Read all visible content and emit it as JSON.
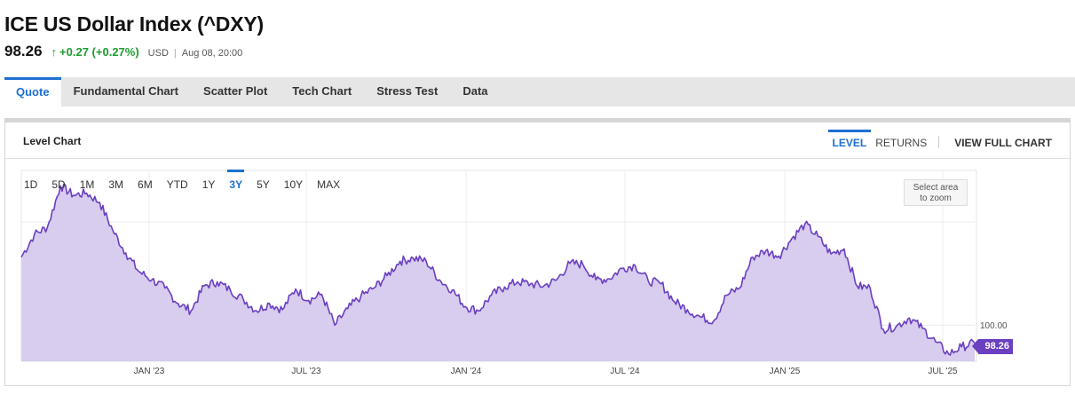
{
  "header": {
    "title": "ICE US Dollar Index (^DXY)",
    "price": "98.26",
    "change": "+0.27 (+0.27%)",
    "currency": "USD",
    "timestamp": "Aug 08, 20:00"
  },
  "tabs": [
    {
      "label": "Quote",
      "active": true
    },
    {
      "label": "Fundamental Chart"
    },
    {
      "label": "Scatter Plot"
    },
    {
      "label": "Tech Chart"
    },
    {
      "label": "Stress Test"
    },
    {
      "label": "Data"
    }
  ],
  "panel": {
    "title": "Level Chart",
    "mode_level": "LEVEL",
    "mode_returns": "RETURNS",
    "view_full": "VIEW FULL CHART"
  },
  "ranges": [
    "1D",
    "5D",
    "1M",
    "3M",
    "6M",
    "YTD",
    "1Y",
    "3Y",
    "5Y",
    "10Y",
    "MAX"
  ],
  "active_range": "3Y",
  "zoom_hint_line1": "Select area",
  "zoom_hint_line2": "to zoom",
  "colors": {
    "accent": "#1d6fd1",
    "positive": "#1e9b2f",
    "series": "#6a3fc0",
    "fill": "#d8ccef"
  },
  "chart_data": {
    "type": "area",
    "series_name": "ICE US Dollar Index",
    "x_tick_labels": [
      "JAN '23",
      "JUL '23",
      "JAN '24",
      "JUL '24",
      "JAN '25",
      "JUL '25"
    ],
    "y_tick_label": "100.00",
    "last_value_label": "98.26",
    "last_value": 98.26,
    "y_min": 96.5,
    "y_max": 115,
    "x": [
      "2022-08",
      "2022-09-01",
      "2022-09-15",
      "2022-09-28",
      "2022-10-10",
      "2022-10-20",
      "2022-11-01",
      "2022-11-10",
      "2022-11-20",
      "2022-12-01",
      "2022-12-15",
      "2023-01-01",
      "2023-01-15",
      "2023-02-01",
      "2023-02-15",
      "2023-03-01",
      "2023-03-15",
      "2023-04-01",
      "2023-04-15",
      "2023-05-01",
      "2023-05-15",
      "2023-06-01",
      "2023-06-15",
      "2023-07-01",
      "2023-07-15",
      "2023-08-01",
      "2023-08-15",
      "2023-09-01",
      "2023-09-15",
      "2023-10-01",
      "2023-10-15",
      "2023-11-01",
      "2023-11-15",
      "2023-12-01",
      "2023-12-15",
      "2024-01-01",
      "2024-01-15",
      "2024-02-01",
      "2024-02-15",
      "2024-03-01",
      "2024-03-15",
      "2024-04-01",
      "2024-04-15",
      "2024-05-01",
      "2024-05-15",
      "2024-06-01",
      "2024-06-15",
      "2024-07-01",
      "2024-07-15",
      "2024-08-01",
      "2024-08-15",
      "2024-09-01",
      "2024-09-15",
      "2024-10-01",
      "2024-10-15",
      "2024-11-01",
      "2024-11-15",
      "2024-12-01",
      "2024-12-15",
      "2025-01-01",
      "2025-01-13",
      "2025-02-01",
      "2025-02-15",
      "2025-03-01",
      "2025-03-15",
      "2025-04-01",
      "2025-04-15",
      "2025-05-01",
      "2025-05-15",
      "2025-06-01",
      "2025-06-15",
      "2025-07-01",
      "2025-07-15",
      "2025-08-08"
    ],
    "values": [
      106.6,
      108.8,
      109.5,
      113.5,
      112.6,
      112.8,
      111.9,
      109.2,
      107.0,
      105.2,
      104.4,
      103.6,
      102.1,
      101.4,
      103.8,
      104.2,
      103.4,
      102.5,
      101.4,
      102.1,
      101.5,
      103.5,
      102.4,
      103.0,
      100.0,
      101.6,
      102.8,
      103.6,
      104.8,
      106.2,
      106.5,
      106.2,
      104.4,
      103.4,
      101.8,
      101.4,
      102.9,
      103.7,
      104.2,
      104.0,
      103.8,
      104.4,
      106.0,
      105.9,
      104.4,
      104.5,
      105.5,
      105.8,
      104.3,
      104.0,
      102.3,
      101.5,
      100.8,
      100.4,
      102.9,
      103.6,
      106.6,
      107.2,
      106.7,
      108.4,
      109.8,
      108.6,
      106.9,
      107.4,
      103.8,
      103.6,
      99.6,
      99.9,
      100.7,
      99.7,
      98.4,
      97.2,
      97.9,
      98.26
    ]
  }
}
